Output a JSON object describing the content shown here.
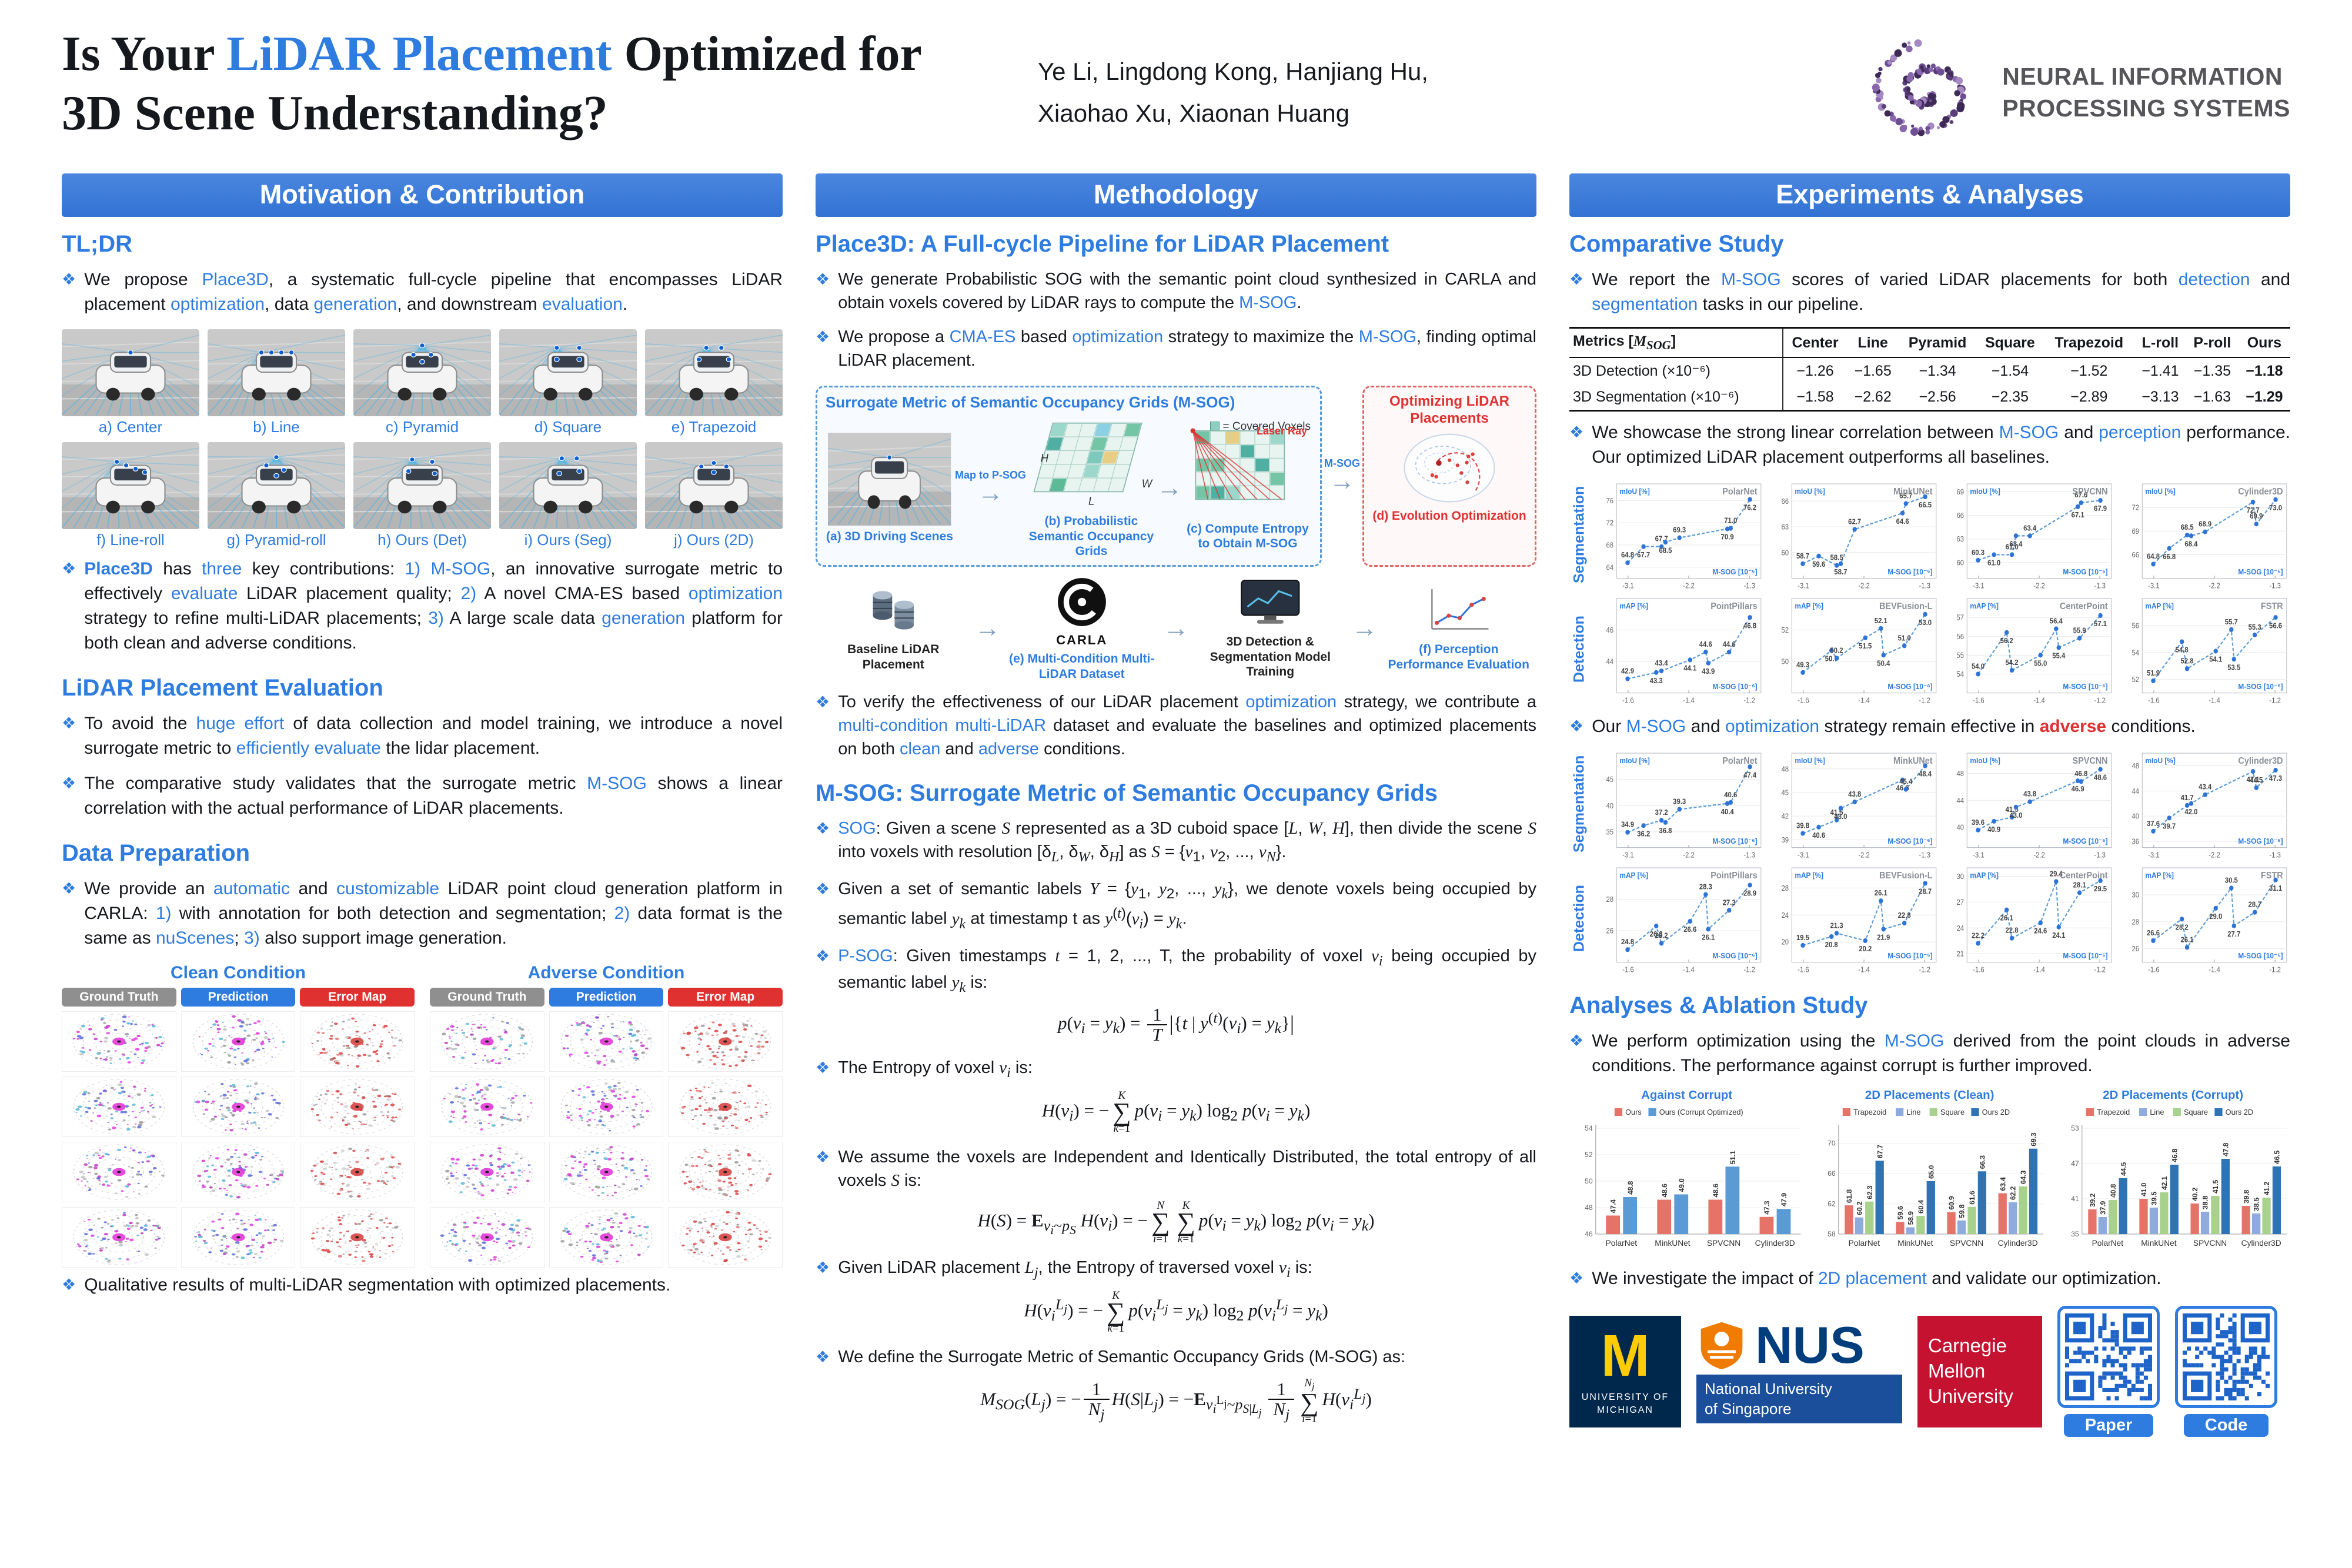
{
  "meta": {
    "accent_blue": "#2E7CE0",
    "accent_red": "#E03131",
    "bar_blue": "#3B7DDD"
  },
  "header": {
    "title_html": "Is Your <span class='b'>LiDAR Placement</span> Optimized for<br>3D Scene Understanding?",
    "authors_line1": "Ye Li, Lingdong Kong, Hanjiang Hu,",
    "authors_line2": "Xiaohao Xu, Xiaonan Huang",
    "neurips_line1": "NEURAL INFORMATION",
    "neurips_line2": "PROCESSING SYSTEMS"
  },
  "col1": {
    "bar": "Motivation & Contribution",
    "tldr_title": "TL;DR",
    "tldr_b1_html": "We propose <span class='b'>Place3D</span>, a systematic full-cycle pipeline that encompasses LiDAR placement <span class='b'>optimization</span>, data <span class='b'>generation</span>, and downstream <span class='b'>evaluation</span>.",
    "contrib_html": "<span class='bb'>Place3D</span> has <span class='b'>three</span> key contributions: <span class='b'>1)</span> <span class='b'>M-SOG</span>, an innovative surrogate metric to effectively <span class='b'>evaluate</span> LiDAR placement quality; <span class='b'>2)</span> A novel CMA-ES based <span class='b'>optimization</span> strategy to refine multi-LiDAR placements; <span class='b'>3)</span> A large scale data <span class='b'>generation</span> platform for both clean and adverse conditions.",
    "placement_labels": [
      "a) Center",
      "b) Line",
      "c) Pyramid",
      "d) Square",
      "e) Trapezoid",
      "f) Line-roll",
      "g) Pyramid-roll",
      "h) Ours (Det)",
      "i) Ours (Seg)",
      "j) Ours (2D)"
    ],
    "eval_title": "LiDAR Placement Evaluation",
    "eval_b1_html": "To avoid the <span class='b'>huge effort</span> of data collection and model training, we introduce a novel surrogate metric to <span class='b'>efficiently evaluate</span> the lidar placement.",
    "eval_b2_html": "The comparative study validates that the surrogate metric <span class='b'>M-SOG</span> shows a linear correlation with the actual performance of LiDAR placements.",
    "dp_title": "Data Preparation",
    "dp_b1_html": "We provide an <span class='b'>automatic</span> and <span class='b'>customizable</span> LiDAR point cloud generation platform in CARLA: <span class='b'>1)</span> with annotation for both detection and segmentation; <span class='b'>2)</span> data format is the same as <span class='b'>nuScenes</span>; <span class='b'>3)</span> also support image generation.",
    "qual": {
      "clean": "Clean Condition",
      "adverse": "Adverse Condition",
      "badges": [
        "Ground Truth",
        "Prediction",
        "Error Map"
      ]
    },
    "qual_caption_html": "Qualitative results of multi-LiDAR segmentation with optimized placements."
  },
  "col2": {
    "bar": "Methodology",
    "h1": "Place3D: A Full-cycle Pipeline for LiDAR Placement",
    "b1_html": "We generate Probabilistic SOG with the semantic point cloud synthesized in CARLA and obtain voxels covered by LiDAR rays to compute the <span class='b'>M-SOG</span>.",
    "b2_html": "We propose a <span class='b'>CMA-ES</span> based <span class='b'>optimization</span> strategy to maximize the <span class='b'>M-SOG</span>, finding optimal LiDAR placement.",
    "pipeline": {
      "box_title": "Surrogate Metric of Semantic Occupancy Grids (M-SOG)",
      "map_label": "Map to P-SOG",
      "laser_label": "Laser Ray",
      "msog_label": "M-SOG",
      "covered_label": "= Covered Voxels",
      "dim_h": "H",
      "dim_l": "L",
      "dim_w": "W",
      "cap_a": "(a) 3D Driving Scenes",
      "cap_b": "(b) Probabilistic Semantic Occupancy Grids",
      "cap_c": "(c) Compute Entropy to Obtain M-SOG",
      "cap_d": "(d) Evolution Optimization",
      "opt_title": "Optimizing LiDAR Placements",
      "baseline": "Baseline LiDAR Placement",
      "carla": "CARLA",
      "cap_e": "(e) Multi-Condition Multi-LiDAR Dataset",
      "training": "3D Detection & Segmentation Model Training",
      "cap_f": "(f) Perception Performance Evaluation"
    },
    "b3_html": "To verify the effectiveness of our LiDAR placement <span class='b'>optimization</span> strategy, we contribute a <span class='b'>multi-condition multi-LiDAR</span> dataset and evaluate the baselines and optimized placements on both <span class='b'>clean</span> and <span class='b'>adverse</span> conditions.",
    "h2": "M-SOG: Surrogate Metric of Semantic Occupancy Grids",
    "m1_html": "<span class='b'>SOG</span>: Given a scene <i>S</i> represented as a 3D cuboid space [<i>L</i>, <i>W</i>, <i>H</i>], then divide the scene <i>S</i> into voxels with resolution [δ<i><sub>L</sub></i>, δ<i><sub>W</sub></i>, δ<i><sub>H</sub></i>] as <i>S</i> = {<i>v</i><sub>1</sub>, <i>v</i><sub>2</sub>, ..., <i>v<sub>N</sub></i>}.",
    "m2_html": "Given a set of semantic labels <i>Y</i> = {<i>y</i><sub>1</sub>, <i>y</i><sub>2</sub>, ..., <i>y<sub>k</sub></i>}, we denote voxels being occupied by semantic label <i>y<sub>k</sub></i> at timestamp t as <i>y</i><sup>(<i>t</i>)</sup>(<i>v<sub>i</sub></i>) = <i>y<sub>k</sub></i>.",
    "m3_html": "<span class='b'>P-SOG</span>: Given timestamps <i>t</i> = 1, 2, ..., T, the probability of voxel <i>v<sub>i</sub></i> being occupied by semantic label <i>y<sub>k</sub></i> is:",
    "f1_html": "<i>p</i>(<i>v<sub>i</sub></i> = <i>y<sub>k</sub></i>) = <span class='frac'><span class='num'>1</span><span class='den'><i>T</i></span></span><span class='bar-delim'>|</span>{<i>t</i> | <i>y</i><sup>(<i>t</i>)</sup>(<i>v<sub>i</sub></i>) = <i>y<sub>k</sub></i>}<span class='bar-delim'>|</span>",
    "m4_html": "The Entropy of voxel <i>v<sub>i</sub></i> is:",
    "f2_html": "<i>H</i>(<i>v<sub>i</sub></i>) = −<span class='sum'><span class='lim'><i>K</i></span><span class='sig'>∑</span><span class='lim'><i>k</i>=1</span></span><i>p</i>(<i>v<sub>i</sub></i> = <i>y<sub>k</sub></i>) log<sub>2</sub> <i>p</i>(<i>v<sub>i</sub></i> = <i>y<sub>k</sub></i>)",
    "m5_html": "We assume the voxels are Independent and Identically Distributed, the total entropy of all voxels <i>S</i> is:",
    "f3_html": "<i>H</i>(<i>S</i>) = <b>E</b><sub><i>v<sub>i</sub></i>~<i>p<sub>S</sub></i></sub> <i>H</i>(<i>v<sub>i</sub></i>) = −<span class='sum'><span class='lim'><i>N</i></span><span class='sig'>∑</span><span class='lim'><i>i</i>=1</span></span><span class='sum'><span class='lim'><i>K</i></span><span class='sig'>∑</span><span class='lim'><i>k</i>=1</span></span><i>p</i>(<i>v<sub>i</sub></i> = <i>y<sub>k</sub></i>) log<sub>2</sub> <i>p</i>(<i>v<sub>i</sub></i> = <i>y<sub>k</sub></i>)",
    "m6_html": "Given LiDAR placement <i>L<sub>j</sub></i>, the Entropy of traversed voxel <i>v<sub>i</sub></i> is:",
    "f4_html": "<i>H</i>(<i>v<sub>i</sub></i><sup><i>L<sub>j</sub></i></sup>) = −<span class='sum'><span class='lim'><i>K</i></span><span class='sig'>∑</span><span class='lim'><i>k</i>=1</span></span><i>p</i>(<i>v<sub>i</sub></i><sup><i>L<sub>j</sub></i></sup> = <i>y<sub>k</sub></i>) log<sub>2</sub> <i>p</i>(<i>v<sub>i</sub></i><sup><i>L<sub>j</sub></i></sup> = <i>y<sub>k</sub></i>)",
    "m7_html": "We define the Surrogate Metric of Semantic Occupancy Grids (M-SOG) as:",
    "f5_html": "<i>M<sub>SOG</sub></i>(<i>L<sub>j</sub></i>) = −<span class='frac'><span class='num'>1</span><span class='den'><i>N<sub>j</sub></i></span></span><i>H</i>(<i>S</i>|<i>L<sub>j</sub></i>) = −<b>E</b><sub><i>v<sub>i</sub></i><sup>L<sub>j</sub></sup>~<i>p</i><sub><i>S</i>|<i>L<sub>j</sub></i></sub></sub> <span class='frac'><span class='num'>1</span><span class='den'><i>N<sub>j</sub></i></span></span><span class='sum'><span class='lim'><i>N<sub>j</sub></i></span><span class='sig'>∑</span><span class='lim'><i>i</i>=1</span></span><i>H</i>(<i>v<sub>i</sub></i><sup><i>L<sub>j</sub></i></sup>)"
  },
  "col3": {
    "bar": "Experiments & Analyses",
    "h1": "Comparative Study",
    "b1_html": "We report the <span class='b'>M-SOG</span> scores of varied LiDAR placements for both <span class='b'>detection</span> and <span class='b'>segmentation</span> tasks in our pipeline.",
    "b2_html": "We showcase the strong linear correlation between <span class='b'>M-SOG</span> and <span class='b'>perception</span> performance. Our optimized LiDAR placement outperforms all baselines.",
    "b3_html": "Our <span class='b'>M-SOG</span> and <span class='b'>optimization</span> strategy remain effective in <span class='rb'>adverse</span> conditions.",
    "h2": "Analyses & Ablation Study",
    "a1_html": "We perform optimization using the <span class='b'>M-SOG</span> derived from the point clouds in adverse conditions. The performance against corrupt is further improved.",
    "a2_html": "We investigate the impact of <span class='b'>2D placement</span> and validate our optimization."
  },
  "logos": {
    "umich": {
      "abbr": "M",
      "line1": "UNIVERSITY OF",
      "line2": "MICHIGAN"
    },
    "nus": {
      "abbr": "NUS",
      "line1": "National University",
      "line2": "of Singapore"
    },
    "cmu": {
      "line1": "Carnegie",
      "line2": "Mellon",
      "line3": "University"
    },
    "paper_label": "Paper",
    "code_label": "Code"
  },
  "chart_data": [
    {
      "type": "table",
      "id": "msog-table",
      "header_html": [
        "Metrics [<i>M<sub>SOG</sub></i>]",
        "Center",
        "Line",
        "Pyramid",
        "Square",
        "Trapezoid",
        "L-roll",
        "P-roll",
        "Ours"
      ],
      "rows": [
        {
          "label": "3D Detection (×10⁻⁶)",
          "values": [
            "−1.26",
            "−1.65",
            "−1.34",
            "−1.54",
            "−1.52",
            "−1.41",
            "−1.35",
            "−1.18"
          ]
        },
        {
          "label": "3D Segmentation (×10⁻⁶)",
          "values": [
            "−1.58",
            "−2.62",
            "−2.56",
            "−2.35",
            "−2.89",
            "−3.13",
            "−1.63",
            "−1.29"
          ]
        }
      ]
    },
    {
      "type": "scatter-grid",
      "id": "scatter-clean",
      "condition": "clean",
      "placements": [
        "Center",
        "Line",
        "Pyramid",
        "Square",
        "Trapezoid",
        "L-roll",
        "P-roll",
        "Ours"
      ],
      "rows": [
        {
          "row_label": "Segmentation",
          "ylabel": "mIoU [%]",
          "xlabel": "M-SOG [10⁻⁶]",
          "x": [
            -1.58,
            -2.62,
            -2.56,
            -2.35,
            -2.89,
            -3.13,
            -1.63,
            -1.29
          ],
          "subplots": [
            {
              "name": "PolarNet",
              "y": [
                71.0,
                67.7,
                68.5,
                69.3,
                67.7,
                64.8,
                70.9,
                76.2
              ]
            },
            {
              "name": "MinkUNet",
              "y": [
                65.7,
                58.5,
                58.7,
                62.7,
                59.6,
                58.7,
                64.6,
                66.5
              ]
            },
            {
              "name": "SPVCNN",
              "y": [
                67.6,
                61.0,
                63.4,
                63.4,
                61.0,
                60.3,
                67.1,
                67.9
              ]
            },
            {
              "name": "Cylinder3D",
              "y": [
                69.9,
                68.5,
                68.4,
                68.9,
                66.8,
                64.8,
                72.7,
                73.0
              ]
            }
          ]
        },
        {
          "row_label": "Detection",
          "ylabel": "mAP [%]",
          "xlabel": "M-SOG [10⁻⁶]",
          "x": [
            -1.26,
            -1.65,
            -1.34,
            -1.54,
            -1.52,
            -1.41,
            -1.35,
            -1.18
          ],
          "subplots": [
            {
              "name": "PointPillars",
              "y": [
                44.6,
                42.9,
                43.9,
                43.3,
                43.4,
                44.1,
                44.6,
                46.8
              ]
            },
            {
              "name": "BEVFusion-L",
              "y": [
                51.0,
                49.3,
                50.4,
                50.7,
                50.2,
                51.5,
                52.1,
                53.0
              ]
            },
            {
              "name": "CenterPoint",
              "y": [
                55.9,
                54.0,
                55.4,
                56.2,
                54.2,
                55.0,
                56.4,
                57.1
              ]
            },
            {
              "name": "FSTR",
              "y": [
                55.3,
                51.9,
                53.5,
                54.8,
                52.8,
                54.1,
                55.7,
                56.6
              ]
            }
          ]
        }
      ]
    },
    {
      "type": "scatter-grid",
      "id": "scatter-adverse",
      "condition": "adverse",
      "placements": [
        "Center",
        "Line",
        "Pyramid",
        "Square",
        "Trapezoid",
        "L-roll",
        "P-roll",
        "Ours"
      ],
      "rows": [
        {
          "row_label": "Segmentation",
          "ylabel": "mIoU [%]",
          "xlabel": "M-SOG [10⁻⁶]",
          "x": [
            -1.58,
            -2.62,
            -2.56,
            -2.35,
            -2.89,
            -3.13,
            -1.63,
            -1.29
          ],
          "subplots": [
            {
              "name": "PolarNet",
              "y": [
                40.6,
                37.2,
                36.8,
                39.3,
                36.2,
                34.9,
                40.4,
                47.4
              ]
            },
            {
              "name": "MinkUNet",
              "y": [
                45.4,
                41.5,
                43.0,
                43.8,
                40.6,
                39.8,
                46.6,
                48.4
              ]
            },
            {
              "name": "SPVCNN",
              "y": [
                46.8,
                41.5,
                43.0,
                43.8,
                40.9,
                39.6,
                46.9,
                48.6
              ]
            },
            {
              "name": "Cylinder3D",
              "y": [
                44.5,
                41.7,
                42.0,
                43.4,
                39.7,
                37.6,
                47.1,
                47.3
              ]
            }
          ]
        },
        {
          "row_label": "Detection",
          "ylabel": "mAP [%]",
          "xlabel": "M-SOG [10⁻⁶]",
          "x": [
            -1.26,
            -1.65,
            -1.34,
            -1.54,
            -1.52,
            -1.41,
            -1.35,
            -1.18
          ],
          "subplots": [
            {
              "name": "PointPillars",
              "y": [
                27.3,
                24.8,
                26.1,
                26.3,
                25.2,
                26.6,
                28.3,
                28.9
              ]
            },
            {
              "name": "BEVFusion-L",
              "y": [
                22.8,
                19.5,
                21.9,
                20.8,
                21.3,
                20.2,
                26.1,
                28.7
              ]
            },
            {
              "name": "CenterPoint",
              "y": [
                28.1,
                22.2,
                24.1,
                26.1,
                22.8,
                24.6,
                29.4,
                29.5
              ]
            },
            {
              "name": "FSTR",
              "y": [
                28.7,
                26.6,
                27.7,
                28.2,
                26.1,
                29.0,
                30.5,
                31.1
              ]
            }
          ]
        }
      ]
    },
    {
      "type": "bar",
      "id": "bar-against-corrupt",
      "title": "Against Corrupt",
      "ylim": [
        46,
        54
      ],
      "yticks": [
        46,
        48,
        50,
        52,
        54
      ],
      "categories": [
        "PolarNet",
        "MinkUNet",
        "SPVCNN",
        "Cylinder3D"
      ],
      "series": [
        {
          "name": "Ours",
          "color": "#e57368",
          "values": [
            47.4,
            48.6,
            48.6,
            47.3
          ]
        },
        {
          "name": "Ours (Corrupt Optimized)",
          "color": "#5b9bd5",
          "values": [
            48.8,
            49.0,
            51.1,
            47.9
          ]
        }
      ]
    },
    {
      "type": "bar",
      "id": "bar-2d-clean",
      "title": "2D Placements (Clean)",
      "ylim": [
        58,
        72
      ],
      "yticks": [
        58,
        62,
        66,
        70
      ],
      "categories": [
        "PolarNet",
        "MinkUNet",
        "SPVCNN",
        "Cylinder3D"
      ],
      "series": [
        {
          "name": "Trapezoid",
          "color": "#e57368",
          "values": [
            61.8,
            59.6,
            60.9,
            63.4
          ]
        },
        {
          "name": "Line",
          "color": "#8faadc",
          "values": [
            60.2,
            58.9,
            59.8,
            62.2
          ]
        },
        {
          "name": "Square",
          "color": "#a9d18e",
          "values": [
            62.3,
            60.4,
            61.6,
            64.3
          ]
        },
        {
          "name": "Ours 2D",
          "color": "#2e74b5",
          "values": [
            67.7,
            65.0,
            66.3,
            69.3
          ]
        }
      ]
    },
    {
      "type": "bar",
      "id": "bar-2d-corrupt",
      "title": "2D Placements (Corrupt)",
      "ylim": [
        35,
        53
      ],
      "yticks": [
        35,
        41,
        47,
        53
      ],
      "categories": [
        "PolarNet",
        "MinkUNet",
        "SPVCNN",
        "Cylinder3D"
      ],
      "series": [
        {
          "name": "Trapezoid",
          "color": "#e57368",
          "values": [
            39.2,
            41.0,
            40.2,
            39.8
          ]
        },
        {
          "name": "Line",
          "color": "#8faadc",
          "values": [
            37.9,
            39.5,
            38.8,
            38.5
          ]
        },
        {
          "name": "Square",
          "color": "#a9d18e",
          "values": [
            40.8,
            42.1,
            41.5,
            41.2
          ]
        },
        {
          "name": "Ours 2D",
          "color": "#2e74b5",
          "values": [
            44.5,
            46.8,
            47.8,
            46.5
          ]
        }
      ]
    }
  ]
}
